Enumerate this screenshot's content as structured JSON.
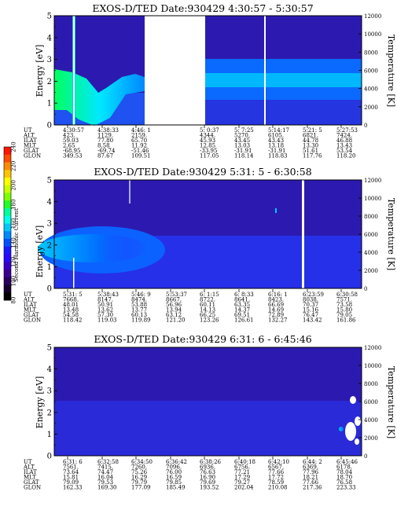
{
  "colorbar": {
    "label": "Second Harmonic Current",
    "ticks": [
      "240",
      "220",
      "200",
      "180",
      "160",
      "140",
      "120",
      "100",
      "80"
    ],
    "colors": [
      "#ff1400",
      "#ff4a00",
      "#ff8a00",
      "#ffc400",
      "#ffff00",
      "#c8ff00",
      "#7cff00",
      "#22ff22",
      "#00ff9a",
      "#00ffe8",
      "#00c8ff",
      "#0088ff",
      "#0050ff",
      "#1a1aff",
      "#2a0aff",
      "#3a00c8",
      "#3a0090",
      "#280060",
      "#140030",
      "#000000"
    ]
  },
  "panels": [
    {
      "title": "EXOS-D/TED   Date:930429  4:30:57 - 5:30:57",
      "ylabel": "Energy [eV]",
      "ylabel2": "Temperature [K]",
      "rows": [
        {
          "label": "UT",
          "values": [
            "4:30:57",
            "4:38:33",
            "4:46: 1",
            "",
            "5: 0:37",
            "5: 7:25",
            "5:14:17",
            "5:21: 5",
            "5:27:53"
          ]
        },
        {
          "label": "ALT",
          "values": [
            "423.",
            "1129.",
            "2159.",
            "",
            "4344.",
            "5270.",
            "6105.",
            "6821.",
            "7424."
          ]
        },
        {
          "label": "ILAT",
          "values": [
            "59.03",
            "77.80",
            "65.70",
            "",
            "45.93",
            "43.45",
            "43.43",
            "44.78",
            "46.88"
          ]
        },
        {
          "label": "MLT",
          "values": [
            "2.65",
            "8.58",
            "11.92",
            "",
            "12.85",
            "13.03",
            "13.18",
            "13.30",
            "13.43"
          ]
        },
        {
          "label": "GLAT",
          "values": [
            "-68.95",
            "-69.74",
            "-51.46",
            "",
            "-33.95",
            "-31.91",
            "-31.91",
            "51.61",
            "53.54"
          ]
        },
        {
          "label": "GLON",
          "values": [
            "349.53",
            "87.67",
            "109.51",
            "",
            "117.05",
            "118.14",
            "118.83",
            "117.76",
            "118.20"
          ]
        }
      ]
    },
    {
      "title": "EXOS-D/TED   Date:930429  5:31: 5 - 6:30:58",
      "ylabel": "Energy [eV]",
      "ylabel2": "Temperature [K]",
      "rows": [
        {
          "label": "UT",
          "values": [
            "5:31: 5",
            "5:38:43",
            "5:46: 9",
            "5:53:37",
            "6: 1:15",
            "6: 8:33",
            "6:16: 1",
            "6:23:59",
            "6:30:58"
          ]
        },
        {
          "label": "ALT",
          "values": [
            "7668.",
            "8147.",
            "8474.",
            "8667.",
            "8722.",
            "8641.",
            "8423.",
            "8038.",
            "7571."
          ]
        },
        {
          "label": "ILAT",
          "values": [
            "48.01",
            "50.91",
            "53.88",
            "56.96",
            "60.11",
            "63.35",
            "66.69",
            "70.37",
            "73.58"
          ]
        },
        {
          "label": "MLT",
          "values": [
            "13.48",
            "13.62",
            "13.77",
            "13.94",
            "14.13",
            "14.37",
            "14.69",
            "15.16",
            "15.80"
          ]
        },
        {
          "label": "GLAT",
          "values": [
            "54.58",
            "57.30",
            "60.13",
            "63.12",
            "66.25",
            "69.51",
            "72.89",
            "76.47",
            "79.05"
          ]
        },
        {
          "label": "GLON",
          "values": [
            "118.42",
            "119.03",
            "119.89",
            "121.20",
            "123.26",
            "126.61",
            "132.27",
            "143.42",
            "161.86"
          ]
        }
      ]
    },
    {
      "title": "EXOS-D/TED   Date:930429  6:31: 6 - 6:45:46",
      "ylabel": "Energy [eV]",
      "ylabel2": "Temperature [K]",
      "rows": [
        {
          "label": "UT",
          "values": [
            "6:31: 6",
            "6:32:58",
            "6:34:50",
            "6:36:42",
            "6:38:26",
            "6:40:18",
            "6:42:10",
            "6:44: 2",
            "6:45:46"
          ]
        },
        {
          "label": "ALT",
          "values": [
            "7561.",
            "7415.",
            "7260.",
            "7096.",
            "6936.",
            "6756.",
            "6567.",
            "6369.",
            "6178."
          ]
        },
        {
          "label": "ILAT",
          "values": [
            "73.64",
            "74.47",
            "75.26",
            "76.00",
            "76.63",
            "77.21",
            "77.66",
            "77.96",
            "78.04"
          ]
        },
        {
          "label": "MLT",
          "values": [
            "15.81",
            "16.04",
            "16.29",
            "16.59",
            "16.90",
            "17.29",
            "17.72",
            "18.21",
            "18.70"
          ]
        },
        {
          "label": "GLAT",
          "values": [
            "79.09",
            "79.53",
            "79.79",
            "79.85",
            "79.69",
            "79.27",
            "78.59",
            "77.66",
            "76.58"
          ]
        },
        {
          "label": "GLON",
          "values": [
            "162.33",
            "169.30",
            "177.09",
            "185.49",
            "193.52",
            "202.04",
            "210.08",
            "217.36",
            "223.33"
          ]
        }
      ]
    }
  ],
  "chart_data": [
    {
      "type": "heatmap",
      "title": "EXOS-D/TED   Date:930429  4:30:57 - 5:30:57",
      "xlabel": "UT",
      "ylabel": "Energy [eV]",
      "ylabel2": "Temperature [K]",
      "x_ticks": [
        "4:30:57",
        "4:38:33",
        "4:46: 1",
        "5: 0:37",
        "5: 7:25",
        "5:14:17",
        "5:21: 5",
        "5:27:53"
      ],
      "y_ticks": [
        0,
        1,
        2,
        3,
        4,
        5
      ],
      "y2_ticks": [
        0,
        2000,
        4000,
        6000,
        8000,
        10000,
        12000
      ],
      "ylim": [
        0,
        5
      ],
      "y2lim": [
        0,
        12000
      ],
      "data_gaps": [
        [
          "4:52:00",
          "5:00:00"
        ]
      ],
      "features": [
        {
          "kind": "intense band",
          "utrange": [
            "4:30:57",
            "4:44:00"
          ],
          "energy_ev": [
            0.5,
            2.5
          ],
          "level": "high"
        },
        {
          "kind": "band",
          "utrange": [
            "5:00:00",
            "5:30:57"
          ],
          "energy_ev": [
            1.5,
            2.8
          ],
          "level": "medium"
        }
      ]
    },
    {
      "type": "heatmap",
      "title": "EXOS-D/TED   Date:930429  5:31: 5 - 6:30:58",
      "xlabel": "UT",
      "ylabel": "Energy [eV]",
      "ylabel2": "Temperature [K]",
      "x_ticks": [
        "5:31: 5",
        "5:38:43",
        "5:46: 9",
        "5:53:37",
        "6: 1:15",
        "6: 8:33",
        "6:16: 1",
        "6:23:59",
        "6:30:58"
      ],
      "y_ticks": [
        0,
        1,
        2,
        3,
        4,
        5
      ],
      "y2_ticks": [
        0,
        2000,
        4000,
        6000,
        8000,
        10000,
        12000
      ],
      "ylim": [
        0,
        5
      ],
      "y2lim": [
        0,
        12000
      ],
      "features": [
        {
          "kind": "band",
          "utrange": [
            "5:31: 5",
            "5:57:00"
          ],
          "energy_ev": [
            1.4,
            2.8
          ],
          "level": "medium"
        },
        {
          "kind": "diffuse",
          "utrange": [
            "5:57:00",
            "6:30:58"
          ],
          "energy_ev": [
            0,
            5
          ],
          "level": "low"
        }
      ]
    },
    {
      "type": "heatmap",
      "title": "EXOS-D/TED   Date:930429  6:31: 6 - 6:45:46",
      "xlabel": "UT",
      "ylabel": "Energy [eV]",
      "ylabel2": "Temperature [K]",
      "x_ticks": [
        "6:31: 6",
        "6:32:58",
        "6:34:50",
        "6:36:42",
        "6:38:26",
        "6:40:18",
        "6:42:10",
        "6:44: 2",
        "6:45:46"
      ],
      "y_ticks": [
        0,
        1,
        2,
        3,
        4,
        5
      ],
      "y2_ticks": [
        0,
        2000,
        4000,
        6000,
        8000,
        10000,
        12000
      ],
      "ylim": [
        0,
        5
      ],
      "y2lim": [
        0,
        12000
      ],
      "features": [
        {
          "kind": "diffuse",
          "utrange": [
            "6:31: 6",
            "6:45:46"
          ],
          "energy_ev": [
            0,
            5
          ],
          "level": "low"
        }
      ]
    }
  ]
}
